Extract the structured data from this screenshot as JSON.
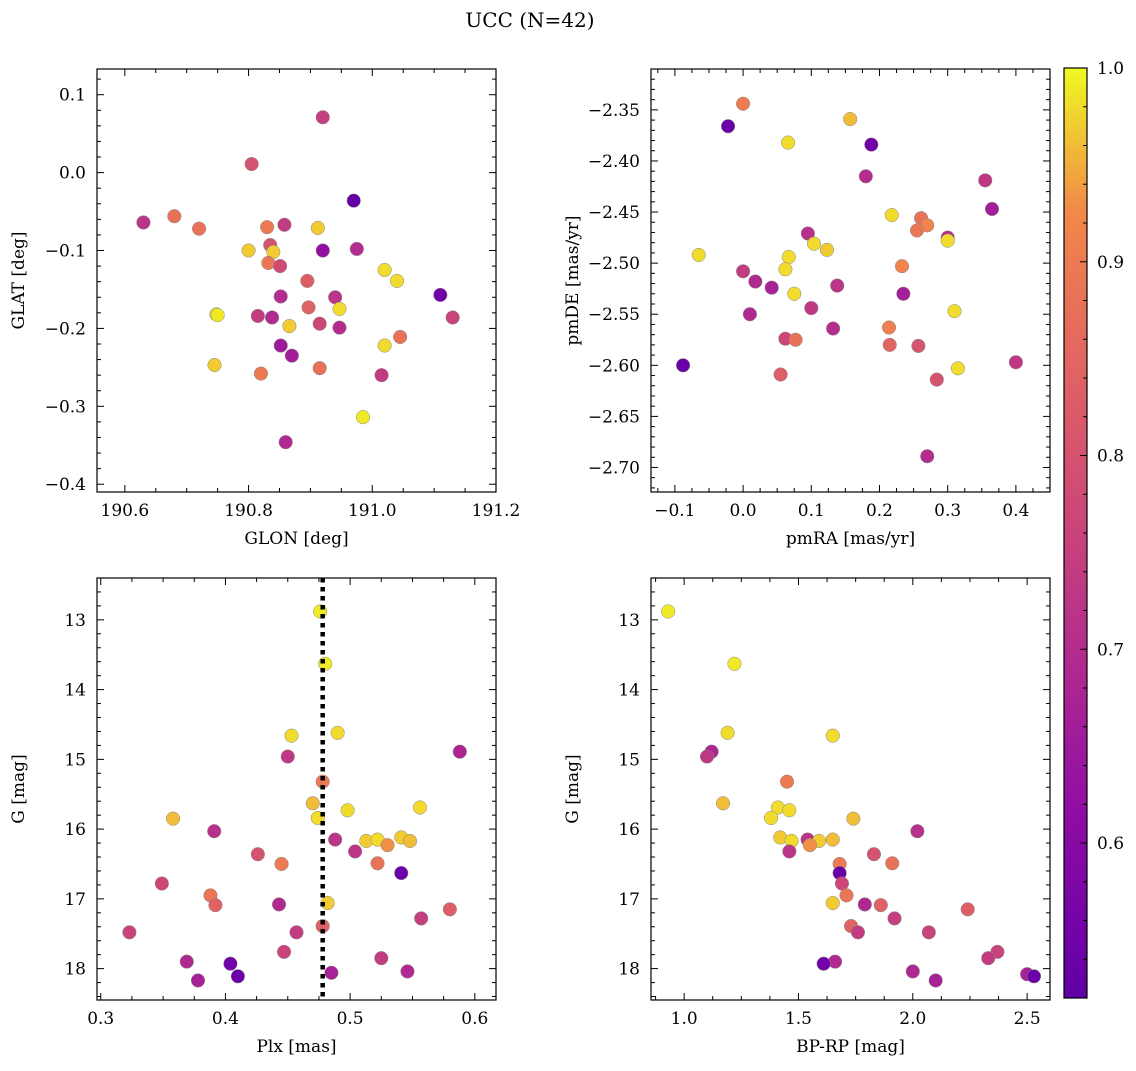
{
  "title": "UCC (N=42)",
  "colorbar": {
    "ticks": [
      0.6,
      0.7,
      0.8,
      0.9,
      1.0
    ],
    "tick_labels": [
      "0.6",
      "0.7",
      "0.8",
      "0.9",
      "1.0"
    ],
    "range": [
      0.52,
      1.0
    ],
    "colormap": "plasma"
  },
  "chart_data": [
    {
      "type": "scatter",
      "xlabel": "GLON [deg]",
      "ylabel": "GLAT [deg]",
      "xlim": [
        190.555,
        191.2
      ],
      "ylim": [
        -0.41,
        0.133
      ],
      "xticks": [
        190.6,
        190.8,
        191.0,
        191.2
      ],
      "xtick_labels": [
        "190.6",
        "190.8",
        "191.0",
        "191.2"
      ],
      "yticks": [
        0.1,
        0.0,
        -0.1,
        -0.2,
        -0.3,
        -0.4
      ],
      "ytick_labels": [
        "0.1",
        "0.0",
        "−0.1",
        "−0.2",
        "−0.3",
        "−0.4"
      ],
      "points": [
        {
          "x": 190.63,
          "y": -0.064,
          "c": 0.72
        },
        {
          "x": 190.68,
          "y": -0.056,
          "c": 0.88
        },
        {
          "x": 190.72,
          "y": -0.072,
          "c": 0.88
        },
        {
          "x": 190.805,
          "y": 0.011,
          "c": 0.8
        },
        {
          "x": 190.92,
          "y": 0.071,
          "c": 0.75
        },
        {
          "x": 190.97,
          "y": -0.036,
          "c": 0.53
        },
        {
          "x": 190.83,
          "y": -0.07,
          "c": 0.9
        },
        {
          "x": 190.858,
          "y": -0.067,
          "c": 0.74
        },
        {
          "x": 190.912,
          "y": -0.071,
          "c": 0.97
        },
        {
          "x": 190.8,
          "y": -0.1,
          "c": 0.97
        },
        {
          "x": 190.835,
          "y": -0.093,
          "c": 0.8
        },
        {
          "x": 190.84,
          "y": -0.102,
          "c": 0.97
        },
        {
          "x": 190.92,
          "y": -0.1,
          "c": 0.62
        },
        {
          "x": 190.975,
          "y": -0.098,
          "c": 0.7
        },
        {
          "x": 190.832,
          "y": -0.116,
          "c": 0.89
        },
        {
          "x": 190.851,
          "y": -0.12,
          "c": 0.78
        },
        {
          "x": 191.02,
          "y": -0.125,
          "c": 0.98
        },
        {
          "x": 191.04,
          "y": -0.139,
          "c": 0.98
        },
        {
          "x": 190.895,
          "y": -0.139,
          "c": 0.83
        },
        {
          "x": 190.852,
          "y": -0.159,
          "c": 0.7
        },
        {
          "x": 190.94,
          "y": -0.16,
          "c": 0.72
        },
        {
          "x": 191.11,
          "y": -0.157,
          "c": 0.55
        },
        {
          "x": 190.897,
          "y": -0.173,
          "c": 0.84
        },
        {
          "x": 190.947,
          "y": -0.175,
          "c": 0.98
        },
        {
          "x": 190.748,
          "y": -0.182,
          "c": 0.98
        },
        {
          "x": 190.75,
          "y": -0.183,
          "c": 0.99
        },
        {
          "x": 190.815,
          "y": -0.184,
          "c": 0.74
        },
        {
          "x": 190.838,
          "y": -0.186,
          "c": 0.69
        },
        {
          "x": 191.13,
          "y": -0.186,
          "c": 0.76
        },
        {
          "x": 190.866,
          "y": -0.197,
          "c": 0.97
        },
        {
          "x": 190.915,
          "y": -0.194,
          "c": 0.77
        },
        {
          "x": 190.947,
          "y": -0.199,
          "c": 0.7
        },
        {
          "x": 191.045,
          "y": -0.211,
          "c": 0.88
        },
        {
          "x": 190.852,
          "y": -0.222,
          "c": 0.65
        },
        {
          "x": 191.02,
          "y": -0.222,
          "c": 0.98
        },
        {
          "x": 190.87,
          "y": -0.235,
          "c": 0.66
        },
        {
          "x": 190.745,
          "y": -0.247,
          "c": 0.97
        },
        {
          "x": 190.82,
          "y": -0.258,
          "c": 0.9
        },
        {
          "x": 190.915,
          "y": -0.251,
          "c": 0.88
        },
        {
          "x": 191.015,
          "y": -0.26,
          "c": 0.74
        },
        {
          "x": 190.985,
          "y": -0.314,
          "c": 0.99
        },
        {
          "x": 190.86,
          "y": -0.346,
          "c": 0.69
        }
      ]
    },
    {
      "type": "scatter",
      "xlabel": "pmRA [mas/yr]",
      "ylabel": "pmDE [mas/yr]",
      "xlim": [
        -0.135,
        0.45
      ],
      "ylim": [
        -2.724,
        -2.31
      ],
      "xticks": [
        -0.1,
        0.0,
        0.1,
        0.2,
        0.3,
        0.4
      ],
      "xtick_labels": [
        "−0.1",
        "0.0",
        "0.1",
        "0.2",
        "0.3",
        "0.4"
      ],
      "yticks": [
        -2.35,
        -2.4,
        -2.45,
        -2.5,
        -2.55,
        -2.6,
        -2.65,
        -2.7
      ],
      "ytick_labels": [
        "−2.35",
        "−2.40",
        "−2.45",
        "−2.50",
        "−2.55",
        "−2.60",
        "−2.65",
        "−2.70"
      ],
      "points": [
        {
          "x": 0.0,
          "y": -2.344,
          "c": 0.9
        },
        {
          "x": -0.022,
          "y": -2.366,
          "c": 0.54
        },
        {
          "x": 0.157,
          "y": -2.359,
          "c": 0.96
        },
        {
          "x": 0.066,
          "y": -2.382,
          "c": 0.98
        },
        {
          "x": 0.188,
          "y": -2.384,
          "c": 0.55
        },
        {
          "x": 0.18,
          "y": -2.415,
          "c": 0.7
        },
        {
          "x": 0.355,
          "y": -2.419,
          "c": 0.73
        },
        {
          "x": 0.365,
          "y": -2.447,
          "c": 0.66
        },
        {
          "x": 0.218,
          "y": -2.453,
          "c": 0.98
        },
        {
          "x": 0.261,
          "y": -2.456,
          "c": 0.88
        },
        {
          "x": 0.27,
          "y": -2.463,
          "c": 0.92
        },
        {
          "x": 0.255,
          "y": -2.468,
          "c": 0.89
        },
        {
          "x": 0.095,
          "y": -2.471,
          "c": 0.71
        },
        {
          "x": 0.3,
          "y": -2.475,
          "c": 0.7
        },
        {
          "x": 0.3,
          "y": -2.478,
          "c": 0.98
        },
        {
          "x": 0.104,
          "y": -2.481,
          "c": 0.98
        },
        {
          "x": 0.123,
          "y": -2.487,
          "c": 0.97
        },
        {
          "x": -0.065,
          "y": -2.492,
          "c": 0.98
        },
        {
          "x": 0.067,
          "y": -2.494,
          "c": 0.98
        },
        {
          "x": 0.233,
          "y": -2.503,
          "c": 0.92
        },
        {
          "x": 0.0,
          "y": -2.508,
          "c": 0.74
        },
        {
          "x": 0.062,
          "y": -2.506,
          "c": 0.98
        },
        {
          "x": 0.018,
          "y": -2.518,
          "c": 0.69
        },
        {
          "x": 0.138,
          "y": -2.522,
          "c": 0.72
        },
        {
          "x": 0.042,
          "y": -2.524,
          "c": 0.67
        },
        {
          "x": 0.075,
          "y": -2.53,
          "c": 0.98
        },
        {
          "x": 0.235,
          "y": -2.53,
          "c": 0.66
        },
        {
          "x": 0.1,
          "y": -2.544,
          "c": 0.73
        },
        {
          "x": 0.31,
          "y": -2.547,
          "c": 0.98
        },
        {
          "x": 0.01,
          "y": -2.55,
          "c": 0.69
        },
        {
          "x": 0.214,
          "y": -2.563,
          "c": 0.91
        },
        {
          "x": 0.132,
          "y": -2.564,
          "c": 0.7
        },
        {
          "x": 0.062,
          "y": -2.574,
          "c": 0.77
        },
        {
          "x": 0.077,
          "y": -2.575,
          "c": 0.88
        },
        {
          "x": 0.215,
          "y": -2.58,
          "c": 0.85
        },
        {
          "x": 0.257,
          "y": -2.581,
          "c": 0.8
        },
        {
          "x": 0.4,
          "y": -2.597,
          "c": 0.73
        },
        {
          "x": -0.088,
          "y": -2.6,
          "c": 0.54
        },
        {
          "x": 0.315,
          "y": -2.603,
          "c": 0.98
        },
        {
          "x": 0.055,
          "y": -2.609,
          "c": 0.83
        },
        {
          "x": 0.284,
          "y": -2.614,
          "c": 0.8
        },
        {
          "x": 0.27,
          "y": -2.689,
          "c": 0.7
        }
      ]
    },
    {
      "type": "scatter",
      "xlabel": "Plx [mas]",
      "ylabel": "G [mag]",
      "xlim": [
        0.297,
        0.617
      ],
      "ylim": [
        18.45,
        12.4
      ],
      "xticks": [
        0.3,
        0.4,
        0.5,
        0.6
      ],
      "xtick_labels": [
        "0.3",
        "0.4",
        "0.5",
        "0.6"
      ],
      "yticks": [
        13,
        14,
        15,
        16,
        17,
        18
      ],
      "ytick_labels": [
        "13",
        "14",
        "15",
        "16",
        "17",
        "18"
      ],
      "vline": {
        "x": 0.478,
        "style": "dotted",
        "color": "#000000"
      },
      "points": [
        {
          "x": 0.476,
          "y": 12.88,
          "c": 0.99
        },
        {
          "x": 0.48,
          "y": 13.63,
          "c": 0.99
        },
        {
          "x": 0.453,
          "y": 14.66,
          "c": 0.98
        },
        {
          "x": 0.49,
          "y": 14.62,
          "c": 0.98
        },
        {
          "x": 0.588,
          "y": 14.89,
          "c": 0.68
        },
        {
          "x": 0.45,
          "y": 14.96,
          "c": 0.73
        },
        {
          "x": 0.478,
          "y": 15.32,
          "c": 0.9
        },
        {
          "x": 0.47,
          "y": 15.63,
          "c": 0.96
        },
        {
          "x": 0.498,
          "y": 15.73,
          "c": 0.98
        },
        {
          "x": 0.556,
          "y": 15.69,
          "c": 0.98
        },
        {
          "x": 0.358,
          "y": 15.85,
          "c": 0.96
        },
        {
          "x": 0.474,
          "y": 15.84,
          "c": 0.98
        },
        {
          "x": 0.391,
          "y": 16.03,
          "c": 0.71
        },
        {
          "x": 0.488,
          "y": 16.15,
          "c": 0.72
        },
        {
          "x": 0.513,
          "y": 16.17,
          "c": 0.97
        },
        {
          "x": 0.522,
          "y": 16.15,
          "c": 0.98
        },
        {
          "x": 0.541,
          "y": 16.12,
          "c": 0.97
        },
        {
          "x": 0.548,
          "y": 16.17,
          "c": 0.96
        },
        {
          "x": 0.53,
          "y": 16.23,
          "c": 0.93
        },
        {
          "x": 0.504,
          "y": 16.32,
          "c": 0.72
        },
        {
          "x": 0.426,
          "y": 16.36,
          "c": 0.8
        },
        {
          "x": 0.445,
          "y": 16.5,
          "c": 0.9
        },
        {
          "x": 0.522,
          "y": 16.49,
          "c": 0.88
        },
        {
          "x": 0.541,
          "y": 16.63,
          "c": 0.54
        },
        {
          "x": 0.349,
          "y": 16.78,
          "c": 0.77
        },
        {
          "x": 0.388,
          "y": 16.95,
          "c": 0.89
        },
        {
          "x": 0.392,
          "y": 17.09,
          "c": 0.84
        },
        {
          "x": 0.443,
          "y": 17.08,
          "c": 0.69
        },
        {
          "x": 0.482,
          "y": 17.06,
          "c": 0.97
        },
        {
          "x": 0.58,
          "y": 17.15,
          "c": 0.83
        },
        {
          "x": 0.557,
          "y": 17.28,
          "c": 0.75
        },
        {
          "x": 0.478,
          "y": 17.39,
          "c": 0.84
        },
        {
          "x": 0.323,
          "y": 17.48,
          "c": 0.76
        },
        {
          "x": 0.457,
          "y": 17.48,
          "c": 0.74
        },
        {
          "x": 0.447,
          "y": 17.76,
          "c": 0.76
        },
        {
          "x": 0.369,
          "y": 17.9,
          "c": 0.69
        },
        {
          "x": 0.404,
          "y": 17.93,
          "c": 0.55
        },
        {
          "x": 0.525,
          "y": 17.85,
          "c": 0.74
        },
        {
          "x": 0.485,
          "y": 18.06,
          "c": 0.67
        },
        {
          "x": 0.546,
          "y": 18.04,
          "c": 0.69
        },
        {
          "x": 0.41,
          "y": 18.11,
          "c": 0.54
        },
        {
          "x": 0.378,
          "y": 18.17,
          "c": 0.67
        }
      ]
    },
    {
      "type": "scatter",
      "xlabel": "BP-RP [mag]",
      "ylabel": "G [mag]",
      "xlim": [
        0.855,
        2.6
      ],
      "ylim": [
        18.45,
        12.4
      ],
      "xticks": [
        1.0,
        1.5,
        2.0,
        2.5
      ],
      "xtick_labels": [
        "1.0",
        "1.5",
        "2.0",
        "2.5"
      ],
      "yticks": [
        13,
        14,
        15,
        16,
        17,
        18
      ],
      "ytick_labels": [
        "13",
        "14",
        "15",
        "16",
        "17",
        "18"
      ],
      "points": [
        {
          "x": 0.93,
          "y": 12.88,
          "c": 0.99
        },
        {
          "x": 1.22,
          "y": 13.63,
          "c": 0.99
        },
        {
          "x": 1.19,
          "y": 14.62,
          "c": 0.98
        },
        {
          "x": 1.65,
          "y": 14.66,
          "c": 0.98
        },
        {
          "x": 1.12,
          "y": 14.89,
          "c": 0.68
        },
        {
          "x": 1.1,
          "y": 14.96,
          "c": 0.73
        },
        {
          "x": 1.45,
          "y": 15.32,
          "c": 0.9
        },
        {
          "x": 1.17,
          "y": 15.63,
          "c": 0.96
        },
        {
          "x": 1.41,
          "y": 15.69,
          "c": 0.98
        },
        {
          "x": 1.46,
          "y": 15.73,
          "c": 0.98
        },
        {
          "x": 1.38,
          "y": 15.84,
          "c": 0.98
        },
        {
          "x": 1.74,
          "y": 15.85,
          "c": 0.96
        },
        {
          "x": 2.02,
          "y": 16.03,
          "c": 0.71
        },
        {
          "x": 1.42,
          "y": 16.12,
          "c": 0.97
        },
        {
          "x": 1.54,
          "y": 16.15,
          "c": 0.72
        },
        {
          "x": 1.47,
          "y": 16.17,
          "c": 0.98
        },
        {
          "x": 1.59,
          "y": 16.17,
          "c": 0.97
        },
        {
          "x": 1.65,
          "y": 16.15,
          "c": 0.96
        },
        {
          "x": 1.55,
          "y": 16.23,
          "c": 0.93
        },
        {
          "x": 1.46,
          "y": 16.32,
          "c": 0.72
        },
        {
          "x": 1.83,
          "y": 16.36,
          "c": 0.8
        },
        {
          "x": 1.68,
          "y": 16.5,
          "c": 0.9
        },
        {
          "x": 1.91,
          "y": 16.49,
          "c": 0.88
        },
        {
          "x": 1.68,
          "y": 16.63,
          "c": 0.54
        },
        {
          "x": 1.69,
          "y": 16.78,
          "c": 0.77
        },
        {
          "x": 1.71,
          "y": 16.95,
          "c": 0.89
        },
        {
          "x": 1.65,
          "y": 17.06,
          "c": 0.97
        },
        {
          "x": 1.79,
          "y": 17.08,
          "c": 0.69
        },
        {
          "x": 1.86,
          "y": 17.09,
          "c": 0.84
        },
        {
          "x": 2.24,
          "y": 17.15,
          "c": 0.83
        },
        {
          "x": 1.92,
          "y": 17.28,
          "c": 0.75
        },
        {
          "x": 1.73,
          "y": 17.39,
          "c": 0.84
        },
        {
          "x": 1.76,
          "y": 17.48,
          "c": 0.74
        },
        {
          "x": 2.07,
          "y": 17.48,
          "c": 0.76
        },
        {
          "x": 2.37,
          "y": 17.76,
          "c": 0.76
        },
        {
          "x": 2.33,
          "y": 17.85,
          "c": 0.74
        },
        {
          "x": 1.66,
          "y": 17.9,
          "c": 0.69
        },
        {
          "x": 1.61,
          "y": 17.93,
          "c": 0.55
        },
        {
          "x": 2.0,
          "y": 18.04,
          "c": 0.69
        },
        {
          "x": 2.5,
          "y": 18.08,
          "c": 0.67
        },
        {
          "x": 2.53,
          "y": 18.11,
          "c": 0.54
        },
        {
          "x": 2.1,
          "y": 18.17,
          "c": 0.67
        }
      ]
    }
  ]
}
